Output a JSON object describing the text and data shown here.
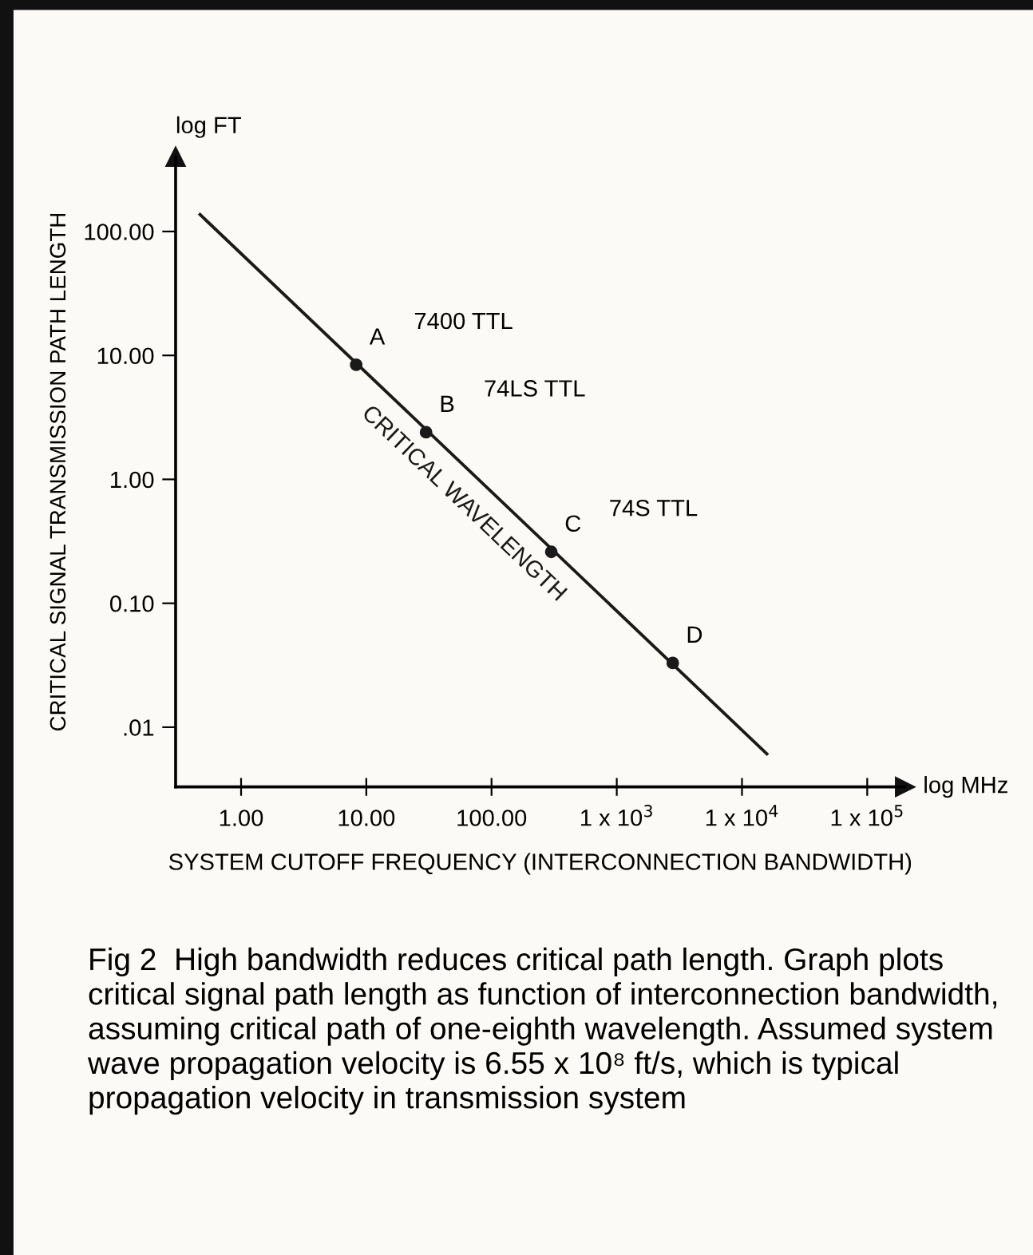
{
  "chart_data": {
    "type": "line",
    "xlabel": "SYSTEM CUTOFF FREQUENCY (INTERCONNECTION BANDWIDTH)",
    "ylabel": "CRITICAL SIGNAL TRANSMISSION PATH LENGTH",
    "log": "xy",
    "xlim": [
      0.3,
      200000
    ],
    "ylim": [
      0.0033,
      400
    ],
    "xticks": [
      {
        "value": 1,
        "label": "1.00"
      },
      {
        "value": 10,
        "label": "10.00"
      },
      {
        "value": 100,
        "label": "100.00"
      },
      {
        "value": 1000,
        "label": "1 x 10$^{3}$"
      },
      {
        "value": 10000,
        "label": "1 x 10$^{4}$"
      },
      {
        "value": 100000,
        "label": "1 x 10$^{5}$"
      }
    ],
    "yticks": [
      {
        "value": 0.01,
        "label": ".01"
      },
      {
        "value": 0.1,
        "label": "0.10"
      },
      {
        "value": 1,
        "label": "1.00"
      },
      {
        "value": 10,
        "label": "10.00"
      },
      {
        "value": 100,
        "label": "100.00"
      }
    ],
    "grid": false,
    "legend": false,
    "series": [
      {
        "name": "CRITICAL WAVELENGTH",
        "color": "#1a1a1a",
        "line_style": "solid",
        "marker": "none",
        "x": [
          0.47,
          15800
        ],
        "values": [
          137,
          0.0061
        ]
      },
      {
        "type": "scatter",
        "color": "#1a1a1a",
        "marker": "circle",
        "x": [
          8.3,
          30,
          300,
          2800
        ],
        "values": [
          8.4,
          2.4,
          0.26,
          0.033
        ]
      }
    ],
    "annotations": [
      {
        "text": "A",
        "x": 8.3,
        "y": 8.4
      },
      {
        "text": "7400 TTL",
        "x": 8.3,
        "y": 8.4
      },
      {
        "text": "B",
        "x": 30,
        "y": 2.4
      },
      {
        "text": "74LS TTL",
        "x": 30,
        "y": 2.4
      },
      {
        "text": "C",
        "x": 300,
        "y": 0.26
      },
      {
        "text": "74S TTL",
        "x": 300,
        "y": 0.26
      },
      {
        "text": "D",
        "x": 2800,
        "y": 0.033
      },
      "log FT",
      "log MHz",
      "Fig 2  High bandwidth reduces critical path length. Graph plots critical signal path length as function of interconnection bandwidth, assuming critical path of one-eighth wavelength. Assumed system wave propagation velocity is 6.55 x 10⁸ ft/s, which is typical propagation velocity in transmission system"
    ]
  }
}
